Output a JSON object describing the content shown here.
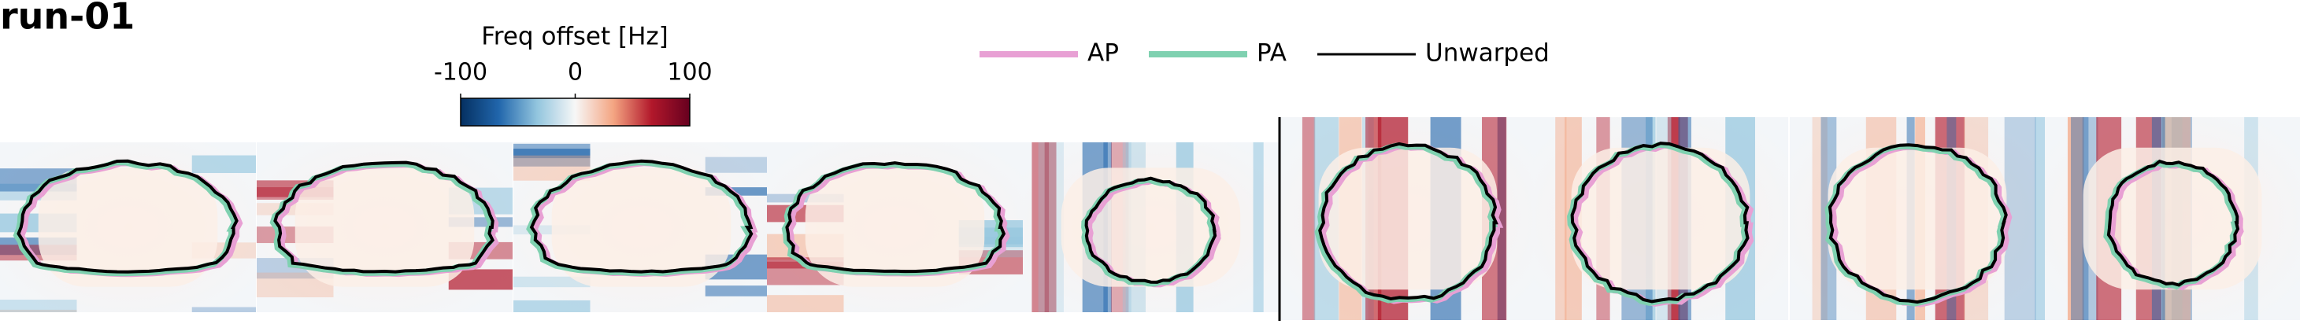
{
  "title": "run-01",
  "colorbar": {
    "label": "Freq offset [Hz]",
    "lim": [
      -100,
      100
    ],
    "ticks": [
      -100,
      0,
      100
    ],
    "colors": [
      "#053061",
      "#2166ac",
      "#92c5de",
      "#f7f7f7",
      "#f4a582",
      "#b2182b",
      "#67001f"
    ]
  },
  "legend": [
    {
      "name": "AP",
      "color": "#e8a0d4"
    },
    {
      "name": "PA",
      "color": "#7fd1b0"
    },
    {
      "name": "Unwarped",
      "color": "#000000"
    }
  ]
}
